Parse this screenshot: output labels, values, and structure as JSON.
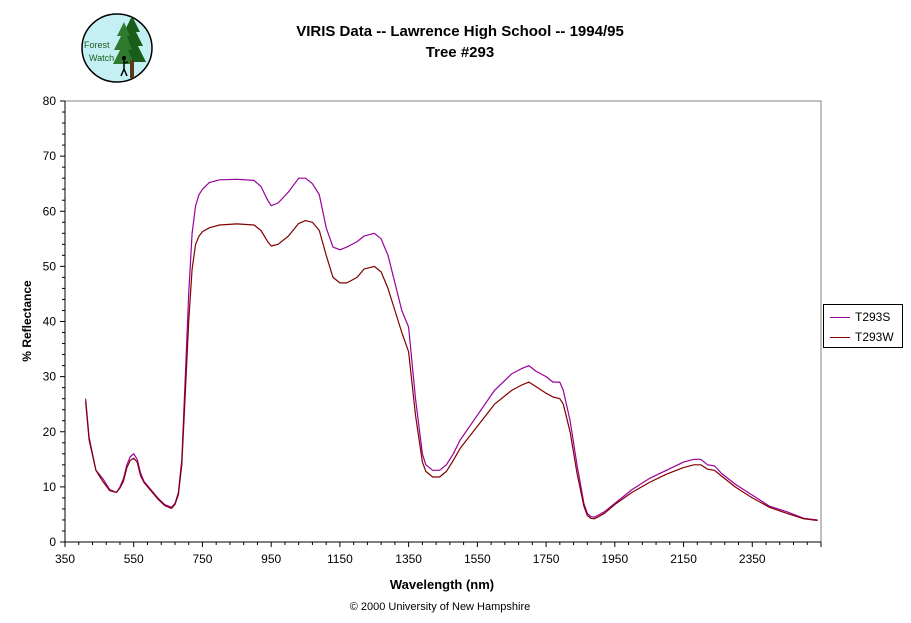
{
  "chart_data": {
    "type": "line",
    "title": "VIRIS Data -- Lawrence High School -- 1994/95",
    "subtitle": "Tree #293",
    "xlabel": "Wavelength (nm)",
    "ylabel": "% Reflectance",
    "xlim": [
      350,
      2550
    ],
    "ylim": [
      0,
      80
    ],
    "xticks": [
      350,
      550,
      750,
      950,
      1150,
      1350,
      1550,
      1750,
      1950,
      2150,
      2350
    ],
    "yticks": [
      0,
      10,
      20,
      30,
      40,
      50,
      60,
      70,
      80
    ],
    "grid": false,
    "legend_position": "right",
    "series": [
      {
        "name": "T293S",
        "color": "#990099",
        "x": [
          410,
          420,
          440,
          460,
          480,
          500,
          510,
          520,
          530,
          540,
          550,
          560,
          570,
          580,
          600,
          620,
          640,
          660,
          670,
          680,
          690,
          700,
          710,
          720,
          730,
          740,
          750,
          770,
          800,
          850,
          900,
          920,
          940,
          950,
          970,
          1000,
          1030,
          1050,
          1070,
          1090,
          1110,
          1130,
          1150,
          1170,
          1200,
          1220,
          1250,
          1270,
          1290,
          1310,
          1330,
          1350,
          1370,
          1390,
          1400,
          1420,
          1440,
          1460,
          1480,
          1500,
          1550,
          1600,
          1650,
          1680,
          1700,
          1720,
          1750,
          1770,
          1790,
          1800,
          1820,
          1840,
          1860,
          1870,
          1880,
          1890,
          1900,
          1920,
          1950,
          2000,
          2050,
          2100,
          2150,
          2180,
          2200,
          2220,
          2240,
          2260,
          2300,
          2350,
          2400,
          2450,
          2500,
          2540
        ],
        "y": [
          26,
          19,
          13,
          11.5,
          9.5,
          9,
          10,
          11.5,
          14,
          15.5,
          16,
          15,
          12.5,
          11,
          9.5,
          8,
          6.8,
          6.3,
          7,
          9,
          15,
          30,
          45,
          56,
          61,
          63,
          64,
          65.2,
          65.7,
          65.8,
          65.6,
          64.5,
          62,
          61,
          61.5,
          63.5,
          66,
          66,
          65,
          63,
          57,
          53.5,
          53,
          53.5,
          54.5,
          55.5,
          56,
          55,
          52,
          47,
          42,
          39,
          26,
          16,
          14,
          13,
          13,
          14,
          16,
          18.5,
          23,
          27.5,
          30.5,
          31.5,
          32,
          31,
          30,
          29,
          29,
          27.5,
          22,
          14,
          7,
          5.2,
          4.6,
          4.5,
          4.8,
          5.5,
          7,
          9.5,
          11.5,
          13,
          14.5,
          15,
          15,
          14,
          13.8,
          12.5,
          10.5,
          8.5,
          6.5,
          5.5,
          4.3,
          4
        ]
      },
      {
        "name": "T293W",
        "color": "#800000",
        "x": [
          410,
          420,
          440,
          460,
          480,
          500,
          510,
          520,
          530,
          540,
          550,
          560,
          570,
          580,
          600,
          620,
          640,
          660,
          670,
          680,
          690,
          700,
          710,
          720,
          730,
          740,
          750,
          770,
          800,
          850,
          900,
          920,
          940,
          950,
          970,
          1000,
          1030,
          1050,
          1070,
          1090,
          1110,
          1130,
          1150,
          1170,
          1200,
          1220,
          1250,
          1270,
          1290,
          1310,
          1330,
          1350,
          1370,
          1390,
          1400,
          1420,
          1440,
          1460,
          1480,
          1500,
          1550,
          1600,
          1650,
          1680,
          1700,
          1720,
          1750,
          1770,
          1790,
          1800,
          1820,
          1840,
          1860,
          1870,
          1880,
          1890,
          1900,
          1920,
          1950,
          2000,
          2050,
          2100,
          2150,
          2180,
          2200,
          2220,
          2240,
          2260,
          2300,
          2350,
          2400,
          2450,
          2500,
          2540
        ],
        "y": [
          25.5,
          18.5,
          13,
          11,
          9.3,
          9,
          9.8,
          11,
          13.5,
          14.8,
          15.2,
          14.5,
          12,
          10.8,
          9.3,
          7.8,
          6.6,
          6.1,
          6.8,
          8.6,
          14,
          27,
          40,
          49.5,
          54,
          55.5,
          56.3,
          57,
          57.5,
          57.7,
          57.5,
          56.5,
          54.5,
          53.7,
          54,
          55.5,
          57.8,
          58.3,
          58,
          56.5,
          52,
          48,
          47,
          47,
          48,
          49.5,
          50,
          49,
          46,
          42,
          38,
          34.5,
          23,
          14.5,
          12.8,
          11.8,
          11.8,
          12.8,
          14.8,
          17,
          21,
          25,
          27.5,
          28.5,
          29,
          28.2,
          27,
          26.3,
          26,
          25,
          20,
          12.5,
          6.5,
          4.8,
          4.3,
          4.2,
          4.5,
          5.2,
          6.8,
          9,
          10.8,
          12.3,
          13.5,
          14,
          14,
          13.2,
          13,
          12,
          10,
          8,
          6.3,
          5.2,
          4.2,
          3.9
        ]
      }
    ]
  },
  "logo": {
    "text_top": "Forest",
    "text_bottom": "Watch",
    "bg_color": "#c4f0f4",
    "tree_color": "#1a5c1a"
  },
  "footer": {
    "copyright": "© 2000 University of New Hampshire"
  }
}
